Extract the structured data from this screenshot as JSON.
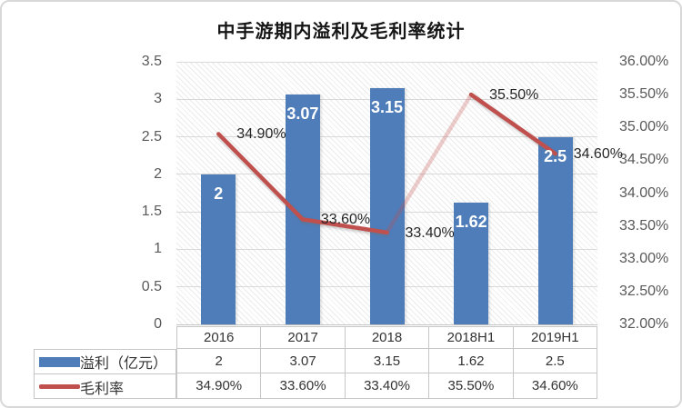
{
  "title": "中手游期内溢利及毛利率统计",
  "chart_data": {
    "type": "bar",
    "combo": "bar+line",
    "categories": [
      "2016",
      "2017",
      "2018",
      "2018H1",
      "2019H1"
    ],
    "series": [
      {
        "name": "溢利（亿元）",
        "chart": "bar",
        "axis": "left",
        "color": "#4E7DBA",
        "values": [
          2,
          3.07,
          3.15,
          1.62,
          2.5
        ],
        "labels": [
          "2",
          "3.07",
          "3.15",
          "1.62",
          "2.5"
        ]
      },
      {
        "name": "毛利率",
        "chart": "line",
        "axis": "right",
        "color": "#C0504D",
        "values": [
          34.9,
          33.6,
          33.4,
          35.5,
          34.6
        ],
        "labels": [
          "34.90%",
          "33.60%",
          "33.40%",
          "35.50%",
          "34.60%"
        ],
        "faded_segments": [
          2
        ]
      }
    ],
    "left_axis": {
      "min": 0,
      "max": 3.5,
      "step": 0.5,
      "ticks": [
        "3.5",
        "3",
        "2.5",
        "2",
        "1.5",
        "1",
        "0.5",
        "0"
      ]
    },
    "right_axis": {
      "min": 32,
      "max": 36,
      "step": 0.5,
      "ticks": [
        "36.00%",
        "35.50%",
        "35.00%",
        "34.50%",
        "34.00%",
        "33.50%",
        "33.00%",
        "32.50%",
        "32.00%"
      ]
    },
    "grid": true,
    "plot_background": "light-downward-diagonal-hatch",
    "legend_position": "data-table-left"
  },
  "data_table": {
    "columns": [
      "2016",
      "2017",
      "2018",
      "2018H1",
      "2019H1"
    ],
    "rows": [
      {
        "label": "溢利（亿元）",
        "swatch": "bar",
        "values": [
          "2",
          "3.07",
          "3.15",
          "1.62",
          "2.5"
        ]
      },
      {
        "label": "毛利率",
        "swatch": "line",
        "values": [
          "34.90%",
          "33.60%",
          "33.40%",
          "35.50%",
          "34.60%"
        ]
      }
    ]
  },
  "colors": {
    "bar": "#4E7DBA",
    "line": "#C0504D",
    "grid": "#D9D9D9",
    "axis_text": "#595959",
    "data_label_text": "#262626",
    "bar_label_text": "#FFFFFF",
    "table_border": "#C6C6C6",
    "table_text": "#333333",
    "frame_border": "#D8D8D8",
    "title_text": "#161616"
  }
}
